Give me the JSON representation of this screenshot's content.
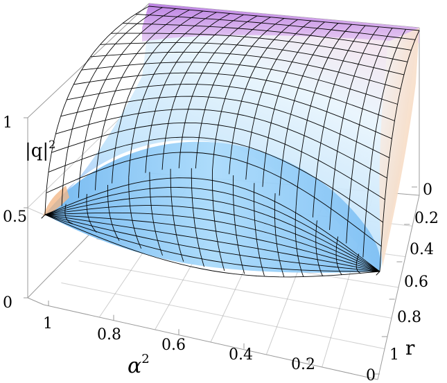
{
  "chart_data": {
    "type": "surface3d",
    "title": "",
    "zlabel": "|q|",
    "zlabel_exponent": "2",
    "xlabel": "α",
    "xlabel_exponent": "2",
    "ylabel": "r",
    "z_ticks": [
      "0",
      "0.5",
      "1"
    ],
    "alpha_sq_ticks": [
      "1",
      "0.8",
      "0.6",
      "0.4",
      "0.2",
      "0"
    ],
    "r_ticks": [
      "0",
      "0.2",
      "0.4",
      "0.6",
      "0.8",
      "1"
    ],
    "zlim": [
      0,
      1
    ],
    "alpha_sq_range": [
      0,
      1
    ],
    "r_range": [
      0,
      1
    ],
    "surface_formula_note": "",
    "grid": true,
    "colors": {
      "surface_low": "#9fd3f6",
      "surface_mid": "#d6ecfb",
      "surface_high": "#a98af0",
      "surface_edge_warm": "#f6c79a",
      "mesh": "#000000",
      "box": "#9a9a9a"
    }
  }
}
